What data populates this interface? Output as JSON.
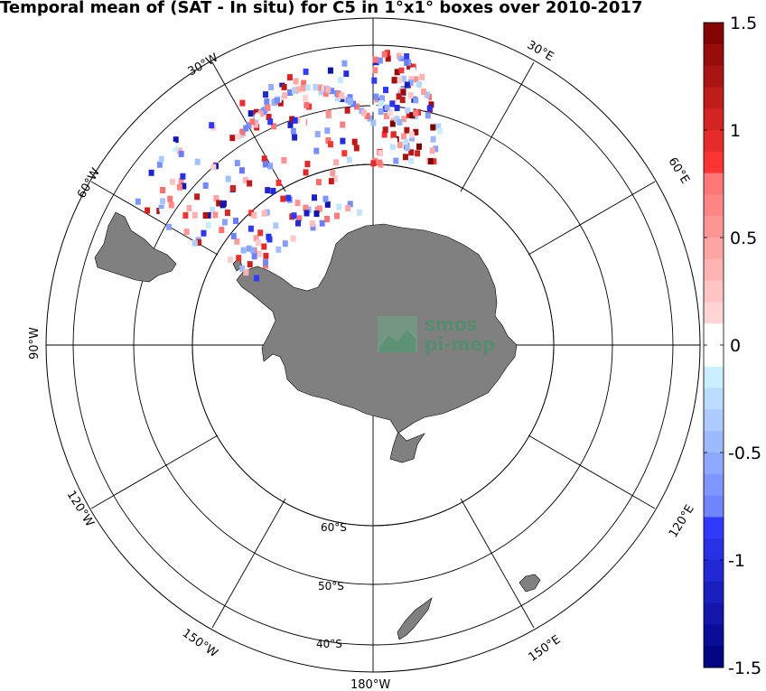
{
  "title": "Temporal mean of (SAT - In situ) for C5 in 1°x1° boxes over 2010-2017",
  "projection": "south-polar stereographic",
  "graticule": {
    "lon_labels": [
      "180°W",
      "150°W",
      "120°W",
      "90°W",
      "60°W",
      "30°W",
      "30°E",
      "60°E",
      "120°E",
      "150°E"
    ],
    "lat_labels": [
      "60°S",
      "50°S",
      "40°S"
    ]
  },
  "colorbar": {
    "ticks": [
      "1.5",
      "1",
      "0.5",
      "0",
      "-0.5",
      "-1",
      "-1.5"
    ],
    "min": -1.5,
    "max": 1.5,
    "colormap": "blue-white-red diverging",
    "high_color": "#7a0000",
    "low_color": "#00007a"
  },
  "logo": {
    "line1": "smos",
    "line2": "pi-mep"
  },
  "land_color": "#808080",
  "observations_region": "Atlantic sector (Drake Passage, Weddell Sea, Greenwich meridian)"
}
